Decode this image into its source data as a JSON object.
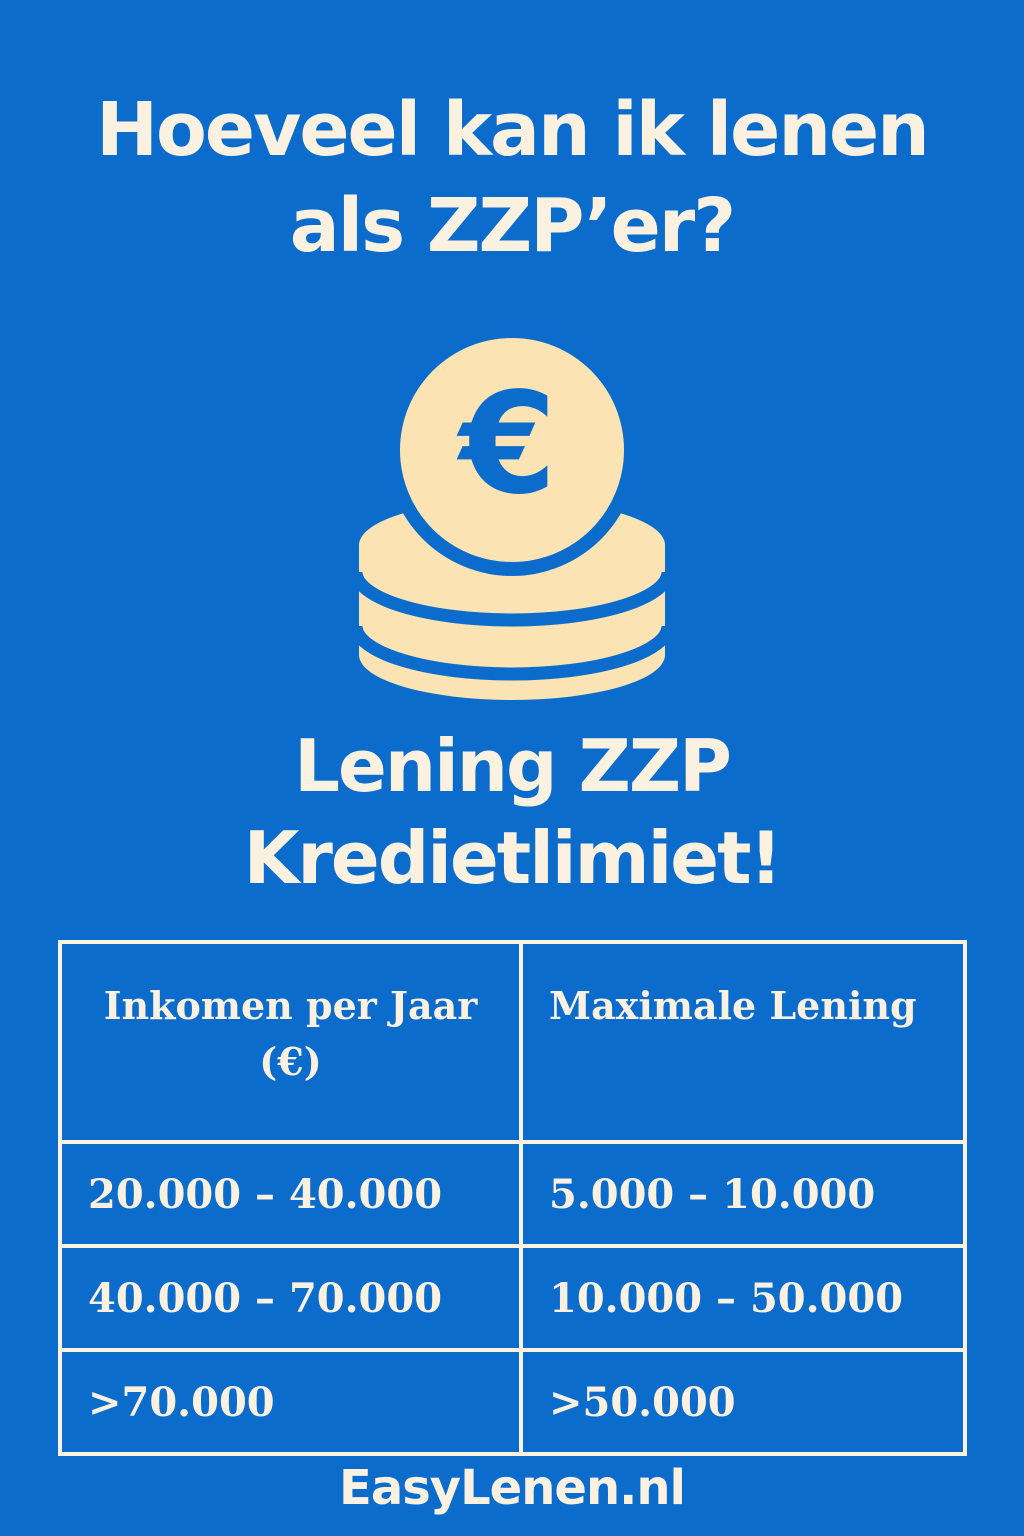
{
  "title": {
    "line1": "Hoeveel kan ik lenen",
    "line2": "als ZZP’er?"
  },
  "icon": {
    "name": "euro-coin-stack-icon",
    "symbol": "€"
  },
  "subtitle": {
    "line1": "Lening ZZP",
    "line2": "Kredietlimiet!"
  },
  "table": {
    "headers": [
      "Inkomen per Jaar (€)",
      "Maximale Lening"
    ],
    "rows": [
      [
        "20.000 – 40.000",
        "5.000 – 10.000"
      ],
      [
        "40.000 – 70.000",
        "10.000 – 50.000"
      ],
      [
        ">70.000",
        ">50.000"
      ]
    ]
  },
  "footer": {
    "brand": "EasyLenen.nl"
  },
  "colors": {
    "background": "#0b6ccc",
    "text": "#fbf1e1",
    "coin": "#fbe3b4"
  }
}
